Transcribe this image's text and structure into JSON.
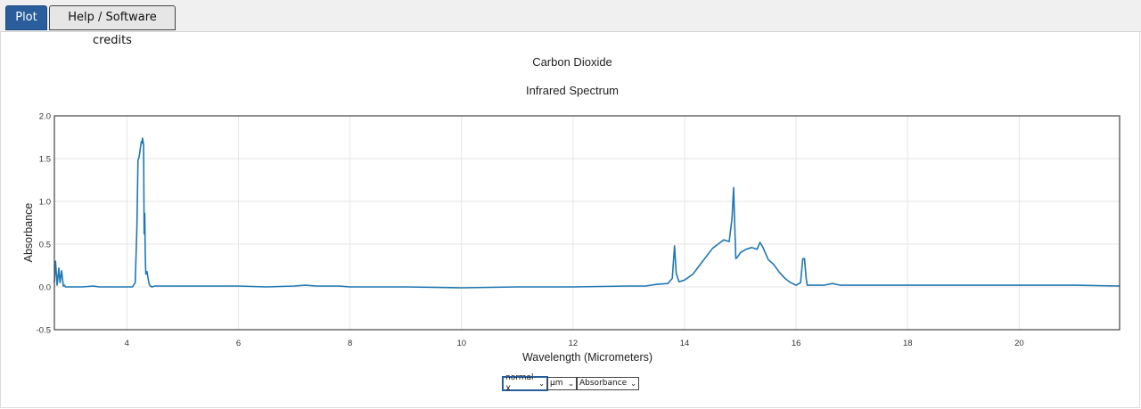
{
  "tabs": [
    {
      "label": "Plot",
      "active": true
    },
    {
      "label": "Help / Software credits",
      "active": false
    }
  ],
  "colors": {
    "tab_active": "#2a5d9b",
    "line": "#1f77b4",
    "grid": "#e6e6e6"
  },
  "controls": {
    "x_scale": "normal X",
    "units": "µm",
    "y_mode": "Absorbance"
  },
  "chart_data": {
    "type": "line",
    "title": "Carbon Dioxide",
    "subtitle": "Infrared Spectrum",
    "xlabel": "Wavelength (Micrometers)",
    "ylabel": "Absorbance",
    "xlim": [
      2.7,
      21.8
    ],
    "ylim": [
      -0.5,
      2.0
    ],
    "xticks": [
      4,
      6,
      8,
      10,
      12,
      14,
      16,
      18,
      20
    ],
    "yticks": [
      -0.5,
      0.0,
      0.5,
      1.0,
      1.5,
      2.0
    ],
    "ytick_labels": [
      "-0.5",
      "0.0",
      "0.5",
      "1.0",
      "1.5",
      "2.0"
    ],
    "grid": true,
    "series": [
      {
        "x": [
          2.7,
          2.72,
          2.75,
          2.78,
          2.8,
          2.83,
          2.86,
          2.88,
          2.9,
          2.93,
          2.96,
          3.0,
          3.2,
          3.4,
          3.5,
          3.6,
          3.8,
          4.0,
          4.1,
          4.15,
          4.18,
          4.2,
          4.22,
          4.24,
          4.26,
          4.27,
          4.28,
          4.29,
          4.3,
          4.31,
          4.32,
          4.33,
          4.34,
          4.36,
          4.38,
          4.4,
          4.42,
          4.45,
          4.5,
          4.7,
          5.0,
          5.5,
          6.0,
          6.5,
          7.0,
          7.2,
          7.4,
          7.8,
          8.0,
          8.5,
          9.0,
          10.0,
          11.0,
          12.0,
          13.0,
          13.3,
          13.5,
          13.7,
          13.78,
          13.82,
          13.85,
          13.9,
          14.0,
          14.15,
          14.3,
          14.5,
          14.6,
          14.7,
          14.8,
          14.85,
          14.88,
          14.9,
          14.92,
          14.95,
          15.0,
          15.1,
          15.2,
          15.3,
          15.35,
          15.4,
          15.5,
          15.6,
          15.7,
          15.8,
          15.9,
          16.0,
          16.08,
          16.12,
          16.15,
          16.18,
          16.2,
          16.3,
          16.5,
          16.65,
          16.8,
          17.0,
          18.0,
          19.0,
          20.0,
          21.0,
          21.8
        ],
        "y": [
          0.05,
          0.3,
          0.02,
          0.22,
          0.05,
          0.19,
          0.01,
          0.02,
          0.0,
          0.0,
          0.0,
          0.0,
          0.0,
          0.01,
          0.0,
          0.0,
          0.0,
          0.0,
          0.0,
          0.05,
          0.7,
          1.48,
          1.52,
          1.62,
          1.7,
          1.68,
          1.74,
          1.7,
          1.66,
          0.62,
          0.86,
          0.35,
          0.15,
          0.18,
          0.1,
          0.03,
          0.01,
          0.0,
          0.01,
          0.01,
          0.01,
          0.01,
          0.01,
          0.0,
          0.01,
          0.02,
          0.01,
          0.01,
          0.0,
          0.0,
          0.0,
          -0.01,
          0.0,
          0.0,
          0.01,
          0.01,
          0.03,
          0.04,
          0.1,
          0.48,
          0.16,
          0.06,
          0.08,
          0.15,
          0.28,
          0.45,
          0.5,
          0.55,
          0.53,
          0.8,
          1.16,
          0.7,
          0.33,
          0.35,
          0.4,
          0.44,
          0.46,
          0.44,
          0.52,
          0.47,
          0.32,
          0.26,
          0.17,
          0.1,
          0.05,
          0.02,
          0.05,
          0.33,
          0.33,
          0.1,
          0.02,
          0.02,
          0.02,
          0.04,
          0.02,
          0.02,
          0.02,
          0.02,
          0.02,
          0.02,
          0.01
        ]
      }
    ]
  }
}
